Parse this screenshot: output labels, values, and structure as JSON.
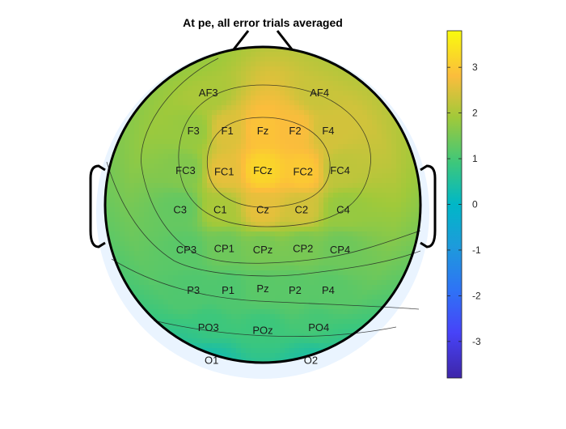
{
  "chart_data": {
    "type": "heatmap",
    "title": "At pe, all error trials averaged",
    "colorbar": {
      "range": [
        -3.8,
        3.8
      ],
      "ticks": [
        "3",
        "2",
        "1",
        "0",
        "-1",
        "-2",
        "-3"
      ],
      "colormap": "parula"
    },
    "electrodes": [
      {
        "label": "AF3",
        "value": 2.0
      },
      {
        "label": "AF4",
        "value": 2.3
      },
      {
        "label": "F3",
        "value": 1.8
      },
      {
        "label": "F1",
        "value": 2.5
      },
      {
        "label": "Fz",
        "value": 2.9
      },
      {
        "label": "F2",
        "value": 2.8
      },
      {
        "label": "F4",
        "value": 2.4
      },
      {
        "label": "FC3",
        "value": 1.6
      },
      {
        "label": "FC1",
        "value": 2.6
      },
      {
        "label": "FCz",
        "value": 3.2
      },
      {
        "label": "FC2",
        "value": 3.0
      },
      {
        "label": "FC4",
        "value": 2.2
      },
      {
        "label": "C3",
        "value": 1.3
      },
      {
        "label": "C1",
        "value": 2.0
      },
      {
        "label": "Cz",
        "value": 2.6
      },
      {
        "label": "C2",
        "value": 2.4
      },
      {
        "label": "C4",
        "value": 1.8
      },
      {
        "label": "CP3",
        "value": 1.2
      },
      {
        "label": "CP1",
        "value": 1.4
      },
      {
        "label": "CPz",
        "value": 1.5
      },
      {
        "label": "CP2",
        "value": 1.5
      },
      {
        "label": "CP4",
        "value": 1.4
      },
      {
        "label": "P3",
        "value": 1.1
      },
      {
        "label": "P1",
        "value": 1.1
      },
      {
        "label": "Pz",
        "value": 1.2
      },
      {
        "label": "P2",
        "value": 1.2
      },
      {
        "label": "P4",
        "value": 1.2
      },
      {
        "label": "PO3",
        "value": 0.9
      },
      {
        "label": "POz",
        "value": 0.9
      },
      {
        "label": "PO4",
        "value": 1.0
      },
      {
        "label": "O1",
        "value": 0.6
      },
      {
        "label": "O2",
        "value": 0.7
      }
    ]
  }
}
